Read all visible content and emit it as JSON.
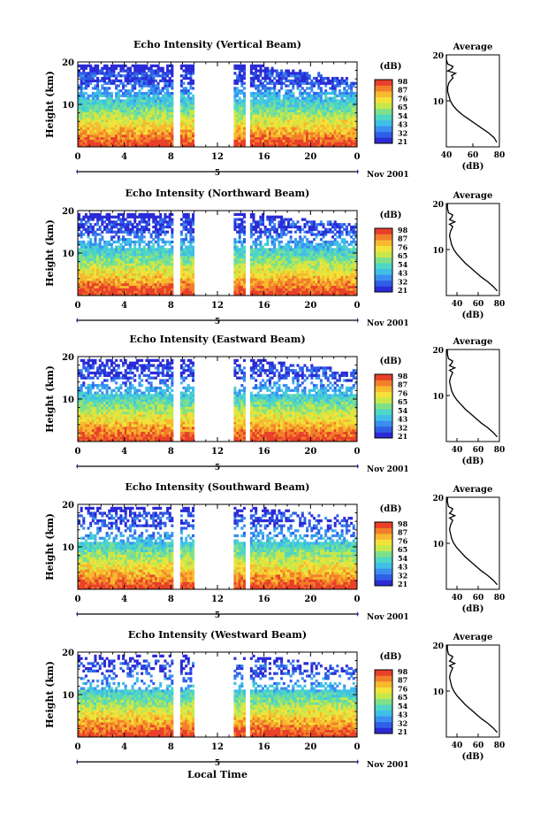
{
  "figure": {
    "xlabel": "Local Time",
    "date_label": "Nov 2001",
    "day_marker": "5",
    "cbar_unit": "(dB)",
    "cbar_ticks": [
      "98",
      "87",
      "76",
      "65",
      "54",
      "43",
      "32",
      "21"
    ],
    "colormap": [
      "#2b2bd6",
      "#2f5fe6",
      "#3a8ff0",
      "#3fbfe8",
      "#4fd6c4",
      "#7fe08a",
      "#c6e84a",
      "#f2e23a",
      "#f7b92e",
      "#f27f2a",
      "#e8402a"
    ],
    "gap_color": "#ffffff"
  },
  "chart_data": [
    {
      "type": "heatmap",
      "title": "Echo Intensity (Vertical Beam)",
      "ylabel": "Height (km)",
      "xlim": [
        0,
        24
      ],
      "ylim": [
        0,
        20
      ],
      "xticks": [
        "0",
        "4",
        "8",
        "12",
        "16",
        "20",
        "0"
      ],
      "yticks": [
        "10",
        "20"
      ],
      "data_gaps_hours": [
        [
          8.2,
          8.8
        ],
        [
          10.0,
          13.3
        ],
        [
          14.4,
          14.8
        ]
      ],
      "colorbar": {
        "label": "(dB)",
        "range": [
          21,
          98
        ]
      },
      "average_profile": {
        "title": "Average",
        "xlabel": "(dB)",
        "xlim": [
          40,
          80
        ],
        "ylim": [
          0,
          20
        ],
        "xticks": [
          "40",
          "60",
          "80"
        ],
        "yticks": [
          "10",
          "20"
        ],
        "points": [
          [
            78,
            1
          ],
          [
            76,
            2
          ],
          [
            72,
            3
          ],
          [
            67,
            4
          ],
          [
            62,
            5
          ],
          [
            57,
            6
          ],
          [
            52,
            7
          ],
          [
            48,
            8
          ],
          [
            45,
            9
          ],
          [
            43,
            10
          ],
          [
            42,
            11
          ],
          [
            41,
            12
          ],
          [
            41,
            13
          ],
          [
            42,
            14
          ],
          [
            45,
            15
          ],
          [
            44,
            15.5
          ],
          [
            47,
            16
          ],
          [
            41,
            16.5
          ],
          [
            44,
            17
          ],
          [
            45,
            17.5
          ],
          [
            41,
            18
          ],
          [
            40,
            19
          ],
          [
            40,
            20
          ]
        ]
      }
    },
    {
      "type": "heatmap",
      "title": "Echo Intensity (Northward Beam)",
      "ylabel": "Height (km)",
      "xlim": [
        0,
        24
      ],
      "ylim": [
        0,
        20
      ],
      "xticks": [
        "0",
        "4",
        "8",
        "12",
        "16",
        "20",
        "0"
      ],
      "yticks": [
        "10",
        "20"
      ],
      "data_gaps_hours": [
        [
          8.2,
          8.8
        ],
        [
          10.0,
          13.3
        ],
        [
          14.4,
          14.8
        ]
      ],
      "colorbar": {
        "label": "(dB)",
        "range": [
          21,
          98
        ]
      },
      "average_profile": {
        "title": "Average",
        "xlabel": "(dB)",
        "xlim": [
          30,
          80
        ],
        "ylim": [
          0,
          20
        ],
        "xticks": [
          "40",
          "60",
          "80"
        ],
        "yticks": [
          "10",
          "20"
        ],
        "points": [
          [
            78,
            1
          ],
          [
            74,
            2
          ],
          [
            69,
            3
          ],
          [
            63,
            4
          ],
          [
            58,
            5
          ],
          [
            53,
            6
          ],
          [
            48,
            7
          ],
          [
            44,
            8
          ],
          [
            40,
            9
          ],
          [
            37,
            10
          ],
          [
            35,
            11
          ],
          [
            34,
            12
          ],
          [
            33,
            13
          ],
          [
            34,
            14
          ],
          [
            36,
            15
          ],
          [
            33,
            15.5
          ],
          [
            38,
            16
          ],
          [
            33,
            16.5
          ],
          [
            35,
            17
          ],
          [
            36,
            17.5
          ],
          [
            32,
            18
          ],
          [
            31,
            19
          ],
          [
            31,
            20
          ]
        ]
      }
    },
    {
      "type": "heatmap",
      "title": "Echo Intensity (Eastward Beam)",
      "ylabel": "Height (km)",
      "xlim": [
        0,
        24
      ],
      "ylim": [
        0,
        20
      ],
      "xticks": [
        "0",
        "4",
        "8",
        "12",
        "16",
        "20",
        "0"
      ],
      "yticks": [
        "10",
        "20"
      ],
      "data_gaps_hours": [
        [
          8.2,
          8.8
        ],
        [
          10.0,
          13.3
        ],
        [
          14.4,
          14.8
        ]
      ],
      "colorbar": {
        "label": "(dB)",
        "range": [
          21,
          98
        ]
      },
      "average_profile": {
        "title": "Average",
        "xlabel": "(dB)",
        "xlim": [
          30,
          80
        ],
        "ylim": [
          0,
          20
        ],
        "xticks": [
          "40",
          "60",
          "80"
        ],
        "yticks": [
          "10",
          "20"
        ],
        "points": [
          [
            78,
            1
          ],
          [
            74,
            2
          ],
          [
            69,
            3
          ],
          [
            63,
            4
          ],
          [
            58,
            5
          ],
          [
            53,
            6
          ],
          [
            48,
            7
          ],
          [
            44,
            8
          ],
          [
            40,
            9
          ],
          [
            37,
            10
          ],
          [
            35,
            11
          ],
          [
            34,
            12
          ],
          [
            33,
            13
          ],
          [
            34,
            14
          ],
          [
            36,
            15
          ],
          [
            33,
            15.5
          ],
          [
            38,
            16
          ],
          [
            33,
            16.5
          ],
          [
            35,
            17
          ],
          [
            36,
            17.5
          ],
          [
            32,
            18
          ],
          [
            31,
            19
          ],
          [
            31,
            20
          ]
        ]
      }
    },
    {
      "type": "heatmap",
      "title": "Echo Intensity (Southward Beam)",
      "ylabel": "Height (km)",
      "xlim": [
        0,
        24
      ],
      "ylim": [
        0,
        20
      ],
      "xticks": [
        "0",
        "4",
        "8",
        "12",
        "16",
        "20",
        "0"
      ],
      "yticks": [
        "10",
        "20"
      ],
      "data_gaps_hours": [
        [
          8.2,
          8.8
        ],
        [
          10.0,
          13.3
        ],
        [
          14.4,
          14.8
        ]
      ],
      "colorbar": {
        "label": "(dB)",
        "range": [
          21,
          98
        ]
      },
      "average_profile": {
        "title": "Average",
        "xlabel": "(dB)",
        "xlim": [
          30,
          80
        ],
        "ylim": [
          0,
          20
        ],
        "xticks": [
          "40",
          "60",
          "80"
        ],
        "yticks": [
          "10",
          "20"
        ],
        "points": [
          [
            78,
            1
          ],
          [
            74,
            2
          ],
          [
            69,
            3
          ],
          [
            63,
            4
          ],
          [
            58,
            5
          ],
          [
            53,
            6
          ],
          [
            48,
            7
          ],
          [
            44,
            8
          ],
          [
            40,
            9
          ],
          [
            37,
            10
          ],
          [
            35,
            11
          ],
          [
            34,
            12
          ],
          [
            33,
            13
          ],
          [
            34,
            14
          ],
          [
            36,
            15
          ],
          [
            33,
            15.5
          ],
          [
            38,
            16
          ],
          [
            33,
            16.5
          ],
          [
            35,
            17
          ],
          [
            36,
            17.5
          ],
          [
            32,
            18
          ],
          [
            31,
            19
          ],
          [
            31,
            20
          ]
        ]
      }
    },
    {
      "type": "heatmap",
      "title": "Echo Intensity (Westward Beam)",
      "ylabel": "Height (km)",
      "xlim": [
        0,
        24
      ],
      "ylim": [
        0,
        20
      ],
      "xticks": [
        "0",
        "4",
        "8",
        "12",
        "16",
        "20",
        "0"
      ],
      "yticks": [
        "10",
        "20"
      ],
      "data_gaps_hours": [
        [
          8.2,
          8.8
        ],
        [
          10.0,
          13.3
        ],
        [
          14.4,
          14.8
        ]
      ],
      "colorbar": {
        "label": "(dB)",
        "range": [
          21,
          98
        ]
      },
      "average_profile": {
        "title": "Average",
        "xlabel": "(dB)",
        "xlim": [
          30,
          80
        ],
        "ylim": [
          0,
          20
        ],
        "xticks": [
          "40",
          "60",
          "80"
        ],
        "yticks": [
          "10",
          "20"
        ],
        "points": [
          [
            78,
            1
          ],
          [
            74,
            2
          ],
          [
            69,
            3
          ],
          [
            63,
            4
          ],
          [
            58,
            5
          ],
          [
            53,
            6
          ],
          [
            48,
            7
          ],
          [
            44,
            8
          ],
          [
            40,
            9
          ],
          [
            37,
            10
          ],
          [
            35,
            11
          ],
          [
            34,
            12
          ],
          [
            33,
            13
          ],
          [
            34,
            14
          ],
          [
            36,
            15
          ],
          [
            33,
            15.5
          ],
          [
            38,
            16
          ],
          [
            33,
            16.5
          ],
          [
            35,
            17
          ],
          [
            36,
            17.5
          ],
          [
            32,
            18
          ],
          [
            31,
            19
          ],
          [
            31,
            20
          ]
        ]
      }
    }
  ]
}
